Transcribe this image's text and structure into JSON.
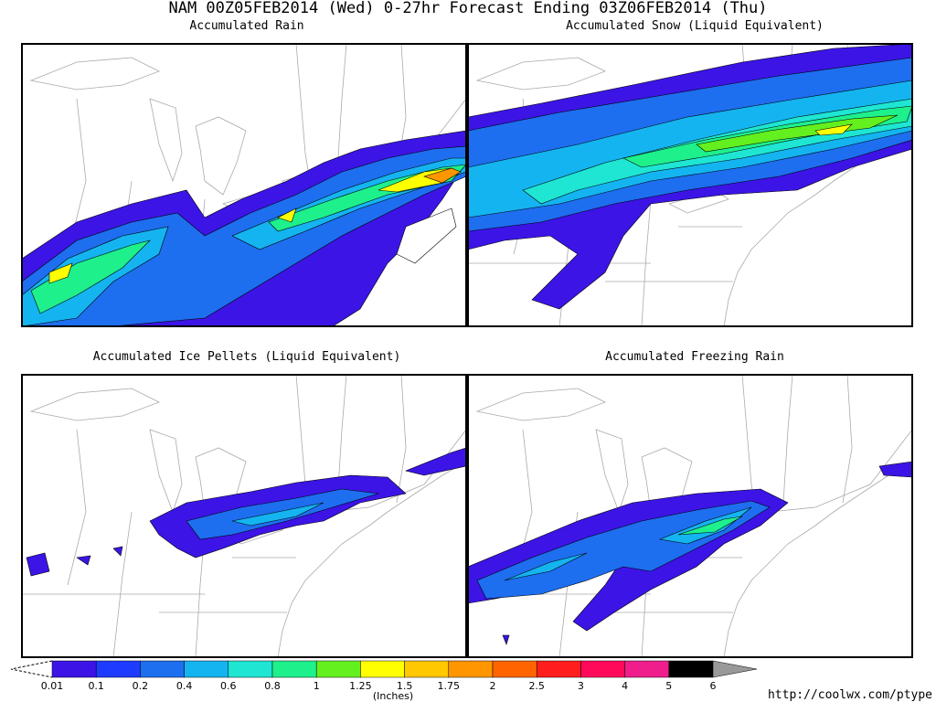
{
  "header": {
    "title": "NAM 00Z05FEB2014 (Wed) 0-27hr Forecast Ending 03Z06FEB2014 (Thu)"
  },
  "panels": [
    {
      "title": "Accumulated Rain"
    },
    {
      "title": "Accumulated Snow (Liquid Equivalent)"
    },
    {
      "title": "Accumulated Ice Pellets (Liquid Equivalent)"
    },
    {
      "title": "Accumulated Freezing Rain"
    }
  ],
  "legend": {
    "labels": [
      "0.01",
      "0.1",
      "0.2",
      "0.4",
      "0.6",
      "0.8",
      "1",
      "1.25",
      "1.5",
      "1.75",
      "2",
      "2.5",
      "3",
      "4",
      "5",
      "6"
    ],
    "colors": [
      "#3c14e6",
      "#1e3cff",
      "#1e6ef0",
      "#14b4f0",
      "#1ee6d2",
      "#1ef08c",
      "#64f01e",
      "#ffff00",
      "#ffc800",
      "#ff9600",
      "#ff6400",
      "#ff1e1e",
      "#ff0a5a",
      "#f01e8c",
      "#000000"
    ],
    "units": "(Inches)"
  },
  "footer": {
    "url": "http://coolwx.com/ptype"
  }
}
